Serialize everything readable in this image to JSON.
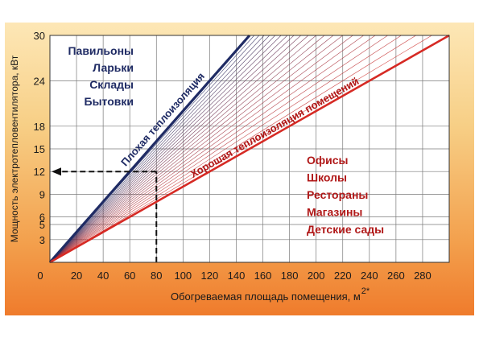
{
  "chart_data": {
    "type": "line",
    "ylabel": "Мощность электротепловентилятора, кВт",
    "xlabel_main": "Обогреваемая площадь помещения, м",
    "xlabel_sup": "2*",
    "x_ticks": [
      "0",
      "20",
      "40",
      "60",
      "80",
      "100",
      "120",
      "140",
      "160",
      "180",
      "200",
      "220",
      "240",
      "260",
      "280"
    ],
    "y_ticks": [
      "3",
      "5",
      "6",
      "9",
      "12",
      "15",
      "18",
      "24",
      "30"
    ],
    "xlim": [
      0,
      300
    ],
    "ylim": [
      0,
      30
    ],
    "grid": true,
    "series": [
      {
        "name": "Плохая теплоизоляция",
        "x": [
          0,
          150
        ],
        "y": [
          0,
          30
        ],
        "color": "#1f2b64"
      },
      {
        "name": "Хорошая теплоизоляция помещений",
        "x": [
          0,
          300
        ],
        "y": [
          0,
          30
        ],
        "color": "#d62a24"
      }
    ],
    "example": {
      "x": 80,
      "y": 12
    },
    "fan_count": 22,
    "annotations": {
      "poor_group": [
        "Павильоны",
        "Ларьки",
        "Склады",
        "Бытовки"
      ],
      "good_group": [
        "Офисы",
        "Школы",
        "Рестораны",
        "Магазины",
        "Детские сады"
      ]
    },
    "colors": {
      "poor": "#1f2b64",
      "good": "#d62a24",
      "poor_text": "#1f2b64",
      "good_text": "#b01818",
      "grid": "#7a7a7a",
      "bg_top": "#f7cf86",
      "bg_bottom": "#ef7b2c"
    }
  }
}
